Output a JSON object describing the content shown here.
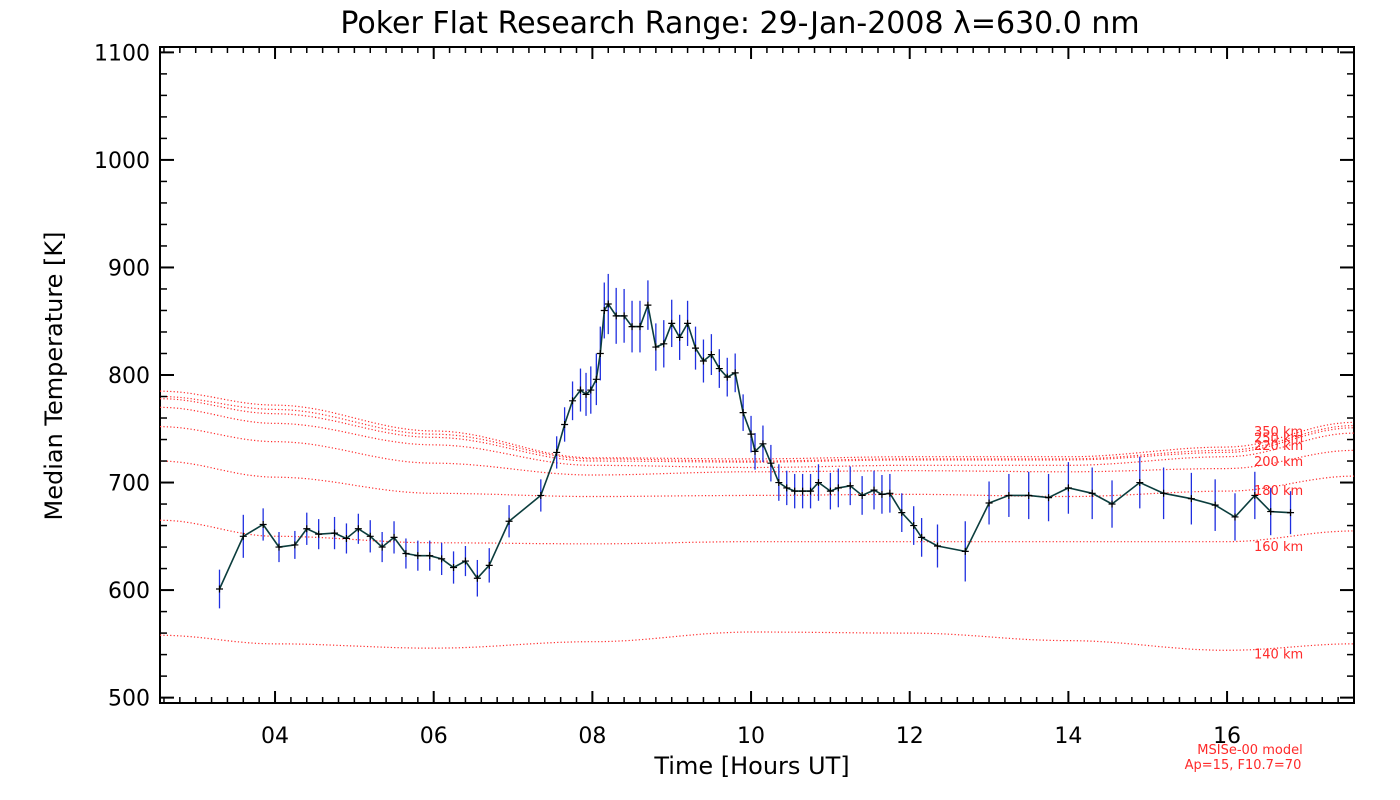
{
  "chart_data": {
    "type": "line",
    "title": "Poker Flat Research Range: 29-Jan-2008 λ=630.0 nm",
    "xlabel": "Time [Hours UT]",
    "ylabel": "Median Temperature [K]",
    "xlim": [
      2.55,
      17.6
    ],
    "ylim": [
      495,
      1105
    ],
    "x_ticks": [
      4,
      6,
      8,
      10,
      12,
      14,
      16
    ],
    "x_tick_labels": [
      "04",
      "06",
      "08",
      "10",
      "12",
      "14",
      "16"
    ],
    "y_ticks": [
      500,
      600,
      700,
      800,
      900,
      1000,
      1100
    ],
    "y_tick_labels": [
      "500",
      "600",
      "700",
      "800",
      "900",
      "1000",
      "1100"
    ],
    "grid": false,
    "colors": {
      "measured_line": "#0b3d3d",
      "error_bars": "#1f2fe0",
      "model": "#ff2a2a",
      "axes": "#000000"
    },
    "measured": {
      "x": [
        3.3,
        3.6,
        3.85,
        4.05,
        4.25,
        4.4,
        4.55,
        4.75,
        4.9,
        5.05,
        5.2,
        5.35,
        5.5,
        5.65,
        5.8,
        5.95,
        6.1,
        6.25,
        6.4,
        6.55,
        6.7,
        6.95,
        7.35,
        7.55,
        7.65,
        7.75,
        7.85,
        7.92,
        7.98,
        8.05,
        8.1,
        8.15,
        8.2,
        8.3,
        8.4,
        8.5,
        8.6,
        8.7,
        8.8,
        8.9,
        9.0,
        9.1,
        9.2,
        9.3,
        9.4,
        9.5,
        9.6,
        9.7,
        9.8,
        9.9,
        10.0,
        10.05,
        10.15,
        10.25,
        10.35,
        10.45,
        10.55,
        10.65,
        10.75,
        10.85,
        11.0,
        11.1,
        11.25,
        11.4,
        11.55,
        11.65,
        11.75,
        11.9,
        12.05,
        12.15,
        12.35,
        12.7,
        13.0,
        13.25,
        13.5,
        13.75,
        14.0,
        14.3,
        14.55,
        14.9,
        15.2,
        15.55,
        15.85,
        16.1,
        16.35,
        16.55,
        16.8
      ],
      "y": [
        601,
        650,
        661,
        640,
        642,
        657,
        652,
        653,
        648,
        657,
        650,
        640,
        649,
        634,
        632,
        632,
        629,
        621,
        627,
        611,
        623,
        664,
        688,
        728,
        754,
        776,
        786,
        782,
        786,
        796,
        820,
        860,
        866,
        855,
        855,
        845,
        845,
        865,
        826,
        829,
        848,
        835,
        848,
        825,
        813,
        819,
        806,
        798,
        802,
        765,
        745,
        729,
        736,
        718,
        700,
        695,
        692,
        692,
        692,
        700,
        692,
        695,
        697,
        688,
        693,
        689,
        690,
        672,
        660,
        649,
        641,
        636,
        681,
        688,
        688,
        686,
        695,
        690,
        680,
        700,
        690,
        685,
        679,
        668,
        688,
        673,
        672
      ],
      "errors": [
        18,
        20,
        15,
        14,
        13,
        15,
        14,
        15,
        14,
        14,
        15,
        14,
        15,
        14,
        14,
        14,
        15,
        15,
        14,
        17,
        16,
        15,
        15,
        15,
        16,
        18,
        20,
        20,
        22,
        24,
        25,
        26,
        28,
        26,
        25,
        24,
        24,
        23,
        22,
        22,
        22,
        21,
        21,
        20,
        20,
        19,
        18,
        18,
        18,
        17,
        17,
        17,
        17,
        17,
        17,
        16,
        16,
        16,
        16,
        17,
        17,
        18,
        18,
        18,
        18,
        18,
        18,
        18,
        18,
        18,
        20,
        28,
        20,
        20,
        22,
        22,
        24,
        24,
        22,
        24,
        24,
        24,
        24,
        22,
        22,
        22,
        20
      ]
    },
    "model_curves": [
      {
        "label": "140 km",
        "x": [
          2.55,
          4,
          6,
          8,
          10,
          12,
          14,
          16,
          17.6
        ],
        "y": [
          558,
          550,
          546,
          552,
          561,
          560,
          553,
          544,
          550
        ]
      },
      {
        "label": "160 km",
        "x": [
          2.55,
          4,
          6,
          8,
          10,
          12,
          14,
          16,
          17.6
        ],
        "y": [
          665,
          650,
          644,
          643,
          645,
          645,
          645,
          645,
          655
        ]
      },
      {
        "label": "180 km",
        "x": [
          2.55,
          4,
          6,
          8,
          10,
          12,
          14,
          16,
          17.6
        ],
        "y": [
          720,
          705,
          690,
          687,
          688,
          689,
          687,
          692,
          706
        ]
      },
      {
        "label": "200 km",
        "x": [
          2.55,
          4,
          6,
          8,
          10,
          12,
          14,
          16,
          17.6
        ],
        "y": [
          752,
          738,
          718,
          707,
          710,
          711,
          710,
          713,
          730
        ]
      },
      {
        "label": "220 km",
        "x": [
          2.55,
          4,
          6,
          8,
          10,
          12,
          14,
          16,
          17.6
        ],
        "y": [
          770,
          755,
          735,
          716,
          714,
          716,
          716,
          724,
          746
        ]
      },
      {
        "label": "240 km",
        "x": [
          2.55,
          4,
          6,
          8,
          10,
          12,
          14,
          16,
          17.6
        ],
        "y": [
          778,
          764,
          742,
          720,
          719,
          721,
          721,
          728,
          751
        ]
      },
      {
        "label": "250 km",
        "x": [
          2.55,
          4,
          6,
          8,
          10,
          12,
          14,
          16,
          17.6
        ],
        "y": [
          780,
          768,
          745,
          722,
          720,
          722,
          722,
          730,
          753
        ]
      },
      {
        "label": "350 km",
        "x": [
          2.55,
          4,
          6,
          8,
          10,
          12,
          14,
          16,
          17.6
        ],
        "y": [
          785,
          772,
          748,
          723,
          722,
          724,
          724,
          733,
          756
        ]
      }
    ],
    "model_labels": [
      {
        "text": "350 km",
        "y": 748
      },
      {
        "text": "250 km",
        "y": 742
      },
      {
        "text": "220 km",
        "y": 735
      },
      {
        "text": "200 km",
        "y": 720
      },
      {
        "text": "180 km",
        "y": 693
      },
      {
        "text": "160 km",
        "y": 641
      },
      {
        "text": "140 km",
        "y": 541
      }
    ],
    "model_note": [
      "MSISe-00 model",
      "Ap=15, F10.7=70"
    ]
  }
}
